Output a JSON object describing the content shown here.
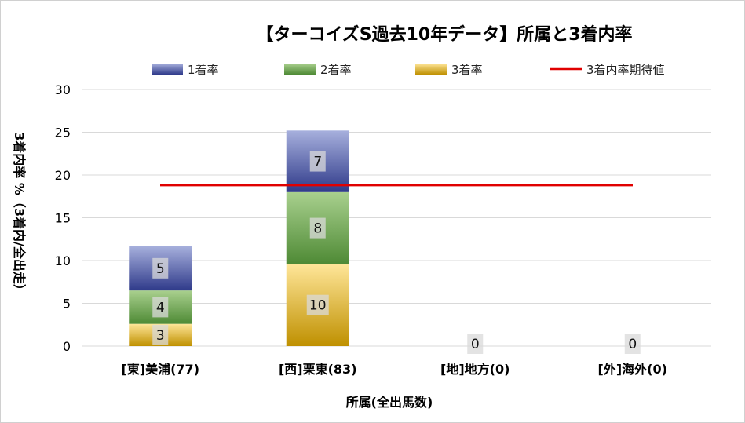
{
  "colors": {
    "series1_top": "#a7b0dd",
    "series1_bottom": "#2f3a8a",
    "series2_top": "#a9d08e",
    "series2_bottom": "#4e8a35",
    "series3_top": "#ffe699",
    "series3_bottom": "#bf9000",
    "expectation_line": "#e00000",
    "grid": "#d9d9d9",
    "label_box": "#d9d9d9"
  },
  "chart_data": {
    "type": "bar",
    "stacked": true,
    "title": "【ターコイズS過去10年データ】所属と3着内率",
    "xlabel": "所属(全出馬数)",
    "ylabel": "3着内率 %（3着内/全出走）",
    "ylim": [
      0,
      30
    ],
    "yticks": [
      "0",
      "5",
      "10",
      "15",
      "20",
      "25",
      "30"
    ],
    "grid": "horizontal",
    "legend_position": "top",
    "categories": [
      "[東]美浦(77)",
      "[西]栗東(83)",
      "[地]地方(0)",
      "[外]海外(0)"
    ],
    "series": [
      {
        "name": "1着率",
        "values": [
          5.2,
          7.2,
          0,
          0
        ],
        "labels": [
          "5",
          "7",
          "",
          ""
        ]
      },
      {
        "name": "2着率",
        "values": [
          3.9,
          8.4,
          0,
          0
        ],
        "labels": [
          "4",
          "8",
          "",
          ""
        ]
      },
      {
        "name": "3着率",
        "values": [
          2.6,
          9.6,
          0,
          0
        ],
        "labels": [
          "3",
          "10",
          "0",
          "0"
        ]
      }
    ],
    "reference_line": {
      "name": "3着内率期待値",
      "value": 18.8
    }
  }
}
